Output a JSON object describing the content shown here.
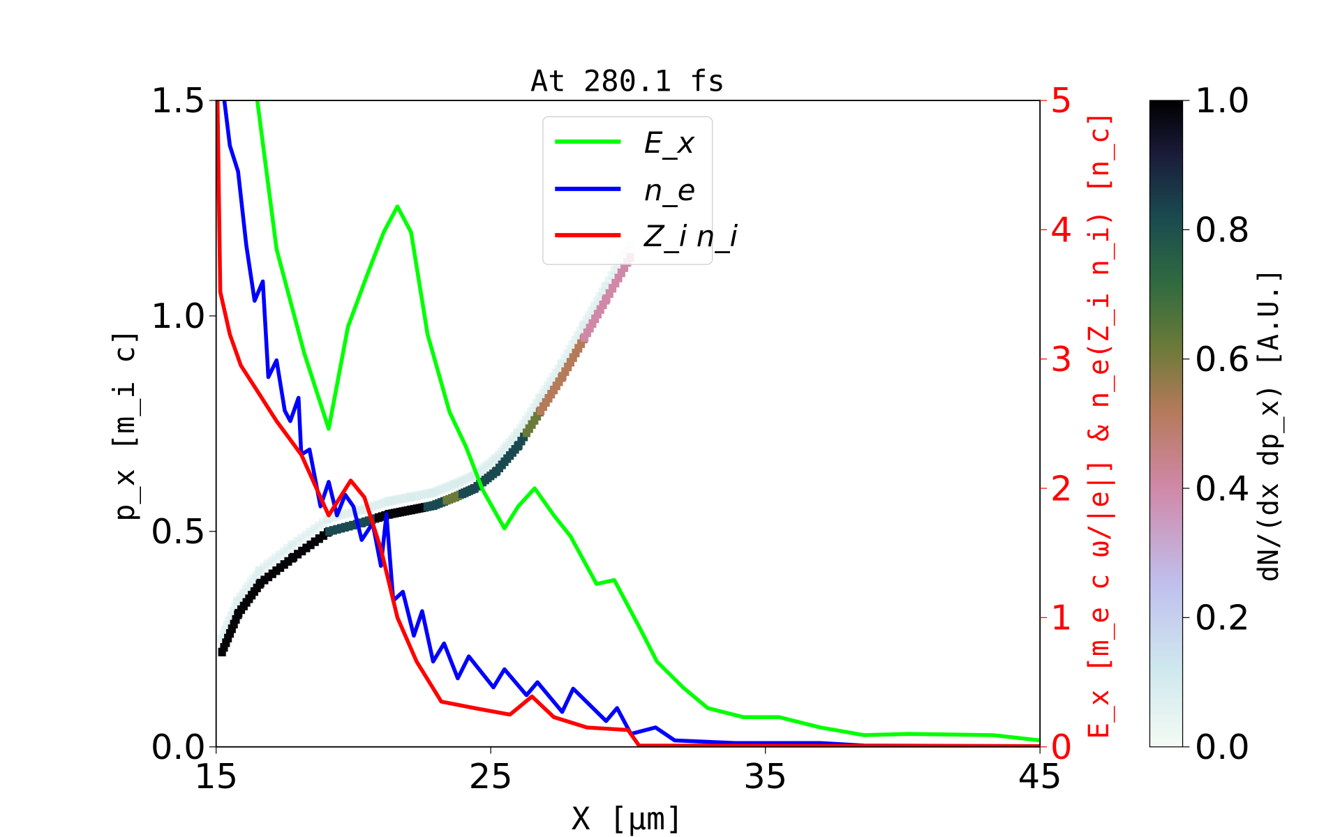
{
  "chart_data": {
    "type": "line",
    "title": "At 280.1 fs",
    "xlabel": "X [μm]",
    "ylabel_left": "p_x [m_i c]",
    "ylabel_right": "E_x [m_e c ω/|e|] & n_e(Z_i n_i) [n_c]",
    "colorbar_label": "dN/(dx dp_x) [A.U.]",
    "xlim": [
      15,
      45
    ],
    "ylim_left": [
      0,
      1.5
    ],
    "ylim_right": [
      0,
      5
    ],
    "colorbar_lim": [
      0,
      1
    ],
    "xticks": [
      "15",
      "25",
      "35",
      "45"
    ],
    "yticks_left": [
      "0.0",
      "0.5",
      "1.0",
      "1.5"
    ],
    "yticks_right": [
      "0",
      "1",
      "2",
      "3",
      "4",
      "5"
    ],
    "colorbar_ticks": [
      "0.0",
      "0.2",
      "0.4",
      "0.6",
      "0.8",
      "1.0"
    ],
    "legend_placement": "top-center",
    "colors": {
      "Ex": "#00ff00",
      "ne": "#0000ff",
      "Zini": "#ff0000",
      "right_axis": "#ff0000"
    },
    "series": [
      {
        "name": "E_x",
        "axis": "right",
        "x": [
          16.5,
          17.2,
          18.2,
          19.1,
          19.8,
          20.5,
          21.1,
          21.6,
          22.1,
          22.7,
          23.5,
          24.1,
          24.7,
          25.5,
          26.0,
          26.6,
          27.3,
          27.9,
          28.85,
          29.5,
          30.4,
          31.05,
          32.0,
          32.9,
          34.2,
          35.5,
          37.0,
          38.6,
          40.2,
          43.3,
          45
        ],
        "y": [
          5,
          3.85,
          3.05,
          2.46,
          3.25,
          3.65,
          3.98,
          4.18,
          3.98,
          3.19,
          2.59,
          2.32,
          1.99,
          1.69,
          1.86,
          2.0,
          1.79,
          1.63,
          1.26,
          1.29,
          0.93,
          0.66,
          0.46,
          0.3,
          0.23,
          0.23,
          0.15,
          0.09,
          0.1,
          0.09,
          0.05
        ]
      },
      {
        "name": "n_e",
        "axis": "right",
        "x": [
          15.3,
          15.5,
          15.8,
          16.1,
          16.4,
          16.7,
          16.9,
          17.2,
          17.5,
          17.7,
          18.0,
          18.1,
          18.4,
          18.8,
          19.1,
          19.4,
          19.7,
          20.0,
          20.3,
          20.7,
          21.0,
          21.2,
          21.45,
          21.8,
          22.2,
          22.5,
          22.9,
          23.3,
          23.8,
          24.2,
          25.1,
          25.5,
          26.3,
          26.7,
          27.6,
          28.0,
          29.2,
          29.6,
          30.1,
          31.0,
          31.7,
          33.9,
          37.0,
          38.6,
          45
        ],
        "y": [
          5,
          4.65,
          4.45,
          3.88,
          3.45,
          3.6,
          2.86,
          2.99,
          2.6,
          2.52,
          2.7,
          2.26,
          2.3,
          1.86,
          2.05,
          1.79,
          1.95,
          1.86,
          1.6,
          1.73,
          1.4,
          1.8,
          1.13,
          1.2,
          0.86,
          1.05,
          0.66,
          0.8,
          0.53,
          0.7,
          0.46,
          0.6,
          0.4,
          0.5,
          0.27,
          0.45,
          0.2,
          0.3,
          0.1,
          0.15,
          0.05,
          0.03,
          0.03,
          0.01,
          0.005
        ]
      },
      {
        "name": "Z_i n_i",
        "axis": "right",
        "x": [
          15.05,
          15.15,
          15.5,
          15.9,
          16.6,
          17.2,
          18.1,
          19.1,
          19.9,
          20.4,
          21.0,
          21.6,
          22.3,
          23.2,
          24.4,
          25.7,
          26.5,
          27.3,
          28.5,
          30.0,
          30.4,
          45
        ],
        "y": [
          5,
          3.52,
          3.19,
          2.95,
          2.72,
          2.52,
          2.26,
          1.79,
          2.06,
          1.93,
          1.53,
          1.0,
          0.66,
          0.35,
          0.3,
          0.25,
          0.39,
          0.23,
          0.15,
          0.13,
          0.01,
          0.005
        ]
      }
    ],
    "phase_space": {
      "axis": "left",
      "x": [
        15.2,
        15.8,
        16.6,
        17.8,
        19.1,
        20.3,
        21.3,
        22.1,
        22.9,
        23.7,
        24.4,
        25.2,
        26.0,
        26.8,
        27.6,
        28.4,
        29.2,
        30.1
      ],
      "px": [
        0.22,
        0.31,
        0.38,
        0.44,
        0.5,
        0.52,
        0.54,
        0.55,
        0.56,
        0.58,
        0.6,
        0.64,
        0.7,
        0.78,
        0.86,
        0.95,
        1.04,
        1.14
      ],
      "density": [
        0.95,
        1.0,
        0.95,
        1.0,
        0.9,
        0.8,
        1.0,
        1.0,
        0.85,
        0.6,
        0.9,
        0.75,
        0.8,
        0.5,
        0.45,
        0.4,
        0.35,
        0.3
      ]
    }
  }
}
